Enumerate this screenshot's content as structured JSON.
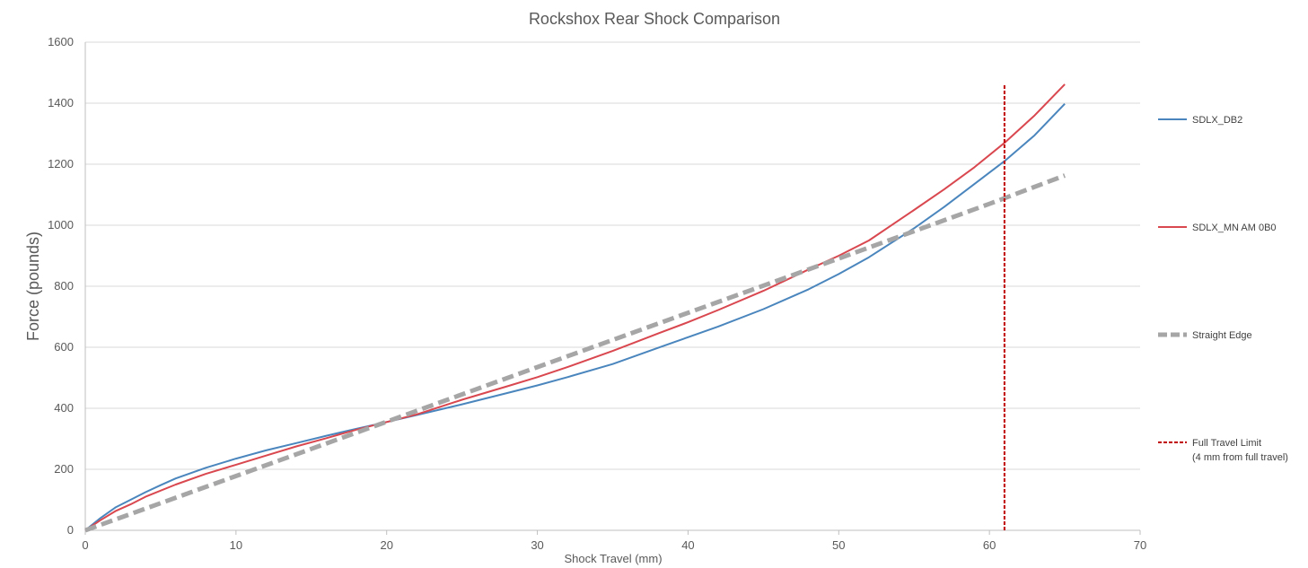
{
  "chart_data": {
    "type": "line",
    "title": "Rockshox Rear Shock Comparison",
    "xlabel": "Shock Travel (mm)",
    "ylabel": "Force (pounds)",
    "xlim": [
      0,
      70
    ],
    "ylim": [
      0,
      1600
    ],
    "x_ticks": [
      0,
      10,
      20,
      30,
      40,
      50,
      60,
      70
    ],
    "y_ticks": [
      0,
      200,
      400,
      600,
      800,
      1000,
      1200,
      1400,
      1600
    ],
    "grid": true,
    "legend_position": "right",
    "series": [
      {
        "name": "SDLX_DB2",
        "color": "#4a86bd",
        "style": "solid",
        "x": [
          0,
          1,
          2,
          3,
          4,
          5,
          6,
          8,
          10,
          12,
          14,
          16,
          18,
          20,
          22,
          25,
          28,
          30,
          32,
          35,
          38,
          40,
          42,
          45,
          48,
          50,
          52,
          55,
          57,
          59,
          61,
          63,
          65
        ],
        "y": [
          0,
          40,
          75,
          100,
          125,
          148,
          170,
          205,
          235,
          262,
          286,
          310,
          333,
          355,
          378,
          413,
          450,
          475,
          502,
          545,
          598,
          633,
          668,
          725,
          790,
          840,
          895,
          990,
          1060,
          1135,
          1210,
          1295,
          1398
        ]
      },
      {
        "name": "SDLX_MN AM 0B0",
        "color": "#d9474f",
        "style": "solid",
        "x": [
          0,
          1,
          2,
          3,
          4,
          6,
          8,
          10,
          12,
          14,
          16,
          18,
          20,
          22,
          25,
          28,
          30,
          32,
          35,
          38,
          40,
          42,
          45,
          48,
          50,
          52,
          55,
          57,
          59,
          61,
          63,
          65
        ],
        "y": [
          0,
          33,
          63,
          85,
          110,
          150,
          185,
          215,
          245,
          275,
          302,
          330,
          355,
          380,
          428,
          472,
          502,
          535,
          588,
          645,
          682,
          722,
          785,
          855,
          900,
          950,
          1050,
          1118,
          1190,
          1270,
          1360,
          1462
        ]
      },
      {
        "name": "Straight Edge",
        "color": "#a6a6a6",
        "style": "dashed",
        "x": [
          0,
          10,
          20,
          30,
          40,
          50,
          60,
          65
        ],
        "y": [
          0,
          178,
          356,
          535,
          713,
          891,
          1070,
          1163
        ]
      },
      {
        "name": "Full Travel Limit",
        "name_line2": "(4 mm from full travel)",
        "color": "#c00000",
        "style": "dashed",
        "x": [
          61,
          61
        ],
        "y": [
          0,
          1460
        ]
      }
    ]
  }
}
